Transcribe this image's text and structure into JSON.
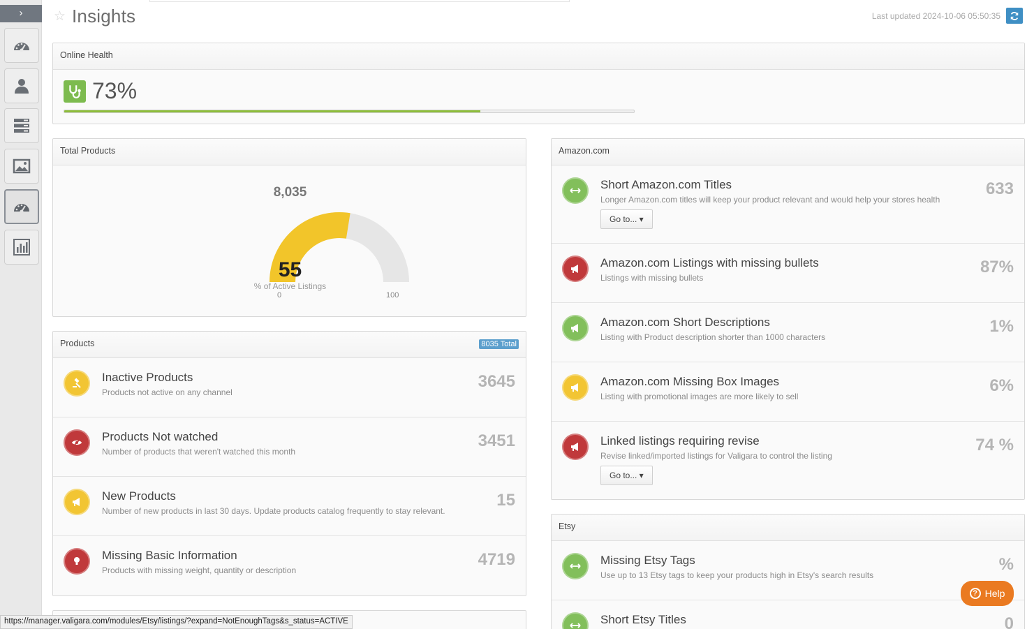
{
  "rail": {
    "toggle_glyph": "›",
    "items": [
      {
        "icon": "dashboard-icon"
      },
      {
        "icon": "user-icon"
      },
      {
        "icon": "list-icon"
      },
      {
        "icon": "image-icon"
      },
      {
        "icon": "insights-gauge-icon",
        "active": true
      },
      {
        "icon": "bar-chart-icon"
      }
    ]
  },
  "header": {
    "title": "Insights",
    "last_updated": "Last updated 2024-10-06 05:50:35",
    "refresh_icon": "refresh-icon"
  },
  "online_health": {
    "heading": "Online Health",
    "value": "73%",
    "percent": 73,
    "icon": "stethoscope-icon",
    "bar_color": "#8dbd3a"
  },
  "total_products": {
    "heading": "Total Products",
    "total": "8,035",
    "gauge_value": "55",
    "gauge_percent": 55,
    "gauge_caption": "% of Active Listings",
    "gauge_min": "0",
    "gauge_max": "100",
    "gauge_color": "#f2c52a"
  },
  "products": {
    "heading": "Products",
    "badge": "8035 Total",
    "rows": [
      {
        "title": "Inactive Products",
        "desc": "Products not active on any channel",
        "value": "3645",
        "color": "yellow",
        "icon": "gavel-icon"
      },
      {
        "title": "Products Not watched",
        "desc": "Number of products that weren't watched this month",
        "value": "3451",
        "color": "red",
        "icon": "eye-slash-icon"
      },
      {
        "title": "New Products",
        "desc": "Number of new products in last 30 days. Update products catalog frequently to stay relevant.",
        "value": "15",
        "color": "yellow",
        "icon": "megaphone-icon"
      },
      {
        "title": "Missing Basic Information",
        "desc": "Products with missing weight, quantity or description",
        "value": "4719",
        "color": "red",
        "icon": "lightbulb-icon"
      }
    ]
  },
  "amazon": {
    "heading": "Amazon.com",
    "goto_label": "Go to...",
    "rows": [
      {
        "title": "Short Amazon.com Titles",
        "desc": "Longer Amazon.com titles will keep your product relevant and would help your stores health",
        "value": "633",
        "color": "green",
        "icon": "arrows-horizontal-icon",
        "goto": true
      },
      {
        "title": "Amazon.com Listings with missing bullets",
        "desc": "Listings with missing bullets",
        "value": "87%",
        "color": "red",
        "icon": "megaphone-icon"
      },
      {
        "title": "Amazon.com Short Descriptions",
        "desc": "Listing with Product description shorter than 1000 characters",
        "value": "1%",
        "color": "green",
        "icon": "megaphone-icon"
      },
      {
        "title": "Amazon.com Missing Box Images",
        "desc": "Listing with promotional images are more likely to sell",
        "value": "6%",
        "color": "yellow",
        "icon": "megaphone-icon"
      },
      {
        "title": "Linked listings requiring revise",
        "desc": "Revise linked/imported listings for Valigara to control the listing",
        "value": "74 %",
        "color": "red",
        "icon": "megaphone-icon",
        "goto": true
      }
    ]
  },
  "etsy": {
    "heading": "Etsy",
    "rows": [
      {
        "title": "Missing Etsy Tags",
        "desc": "Use up to 13 Etsy tags to keep your products high in Etsy's search results",
        "value": "%",
        "color": "green",
        "icon": "arrows-horizontal-icon"
      },
      {
        "title": "Short Etsy Titles",
        "desc": "",
        "value": "0",
        "color": "green",
        "icon": "arrows-horizontal-icon"
      }
    ]
  },
  "help": {
    "label": "Help",
    "glyph": "?"
  },
  "status_url": "https://manager.valigara.com/modules/Etsy/listings/?expand=NotEnoughTags&s_status=ACTIVE",
  "colors": {
    "green": "#82bf5b",
    "red": "#c0393b",
    "yellow": "#f2c533",
    "accent": "#3f8fc4",
    "help": "#ea7a21"
  }
}
